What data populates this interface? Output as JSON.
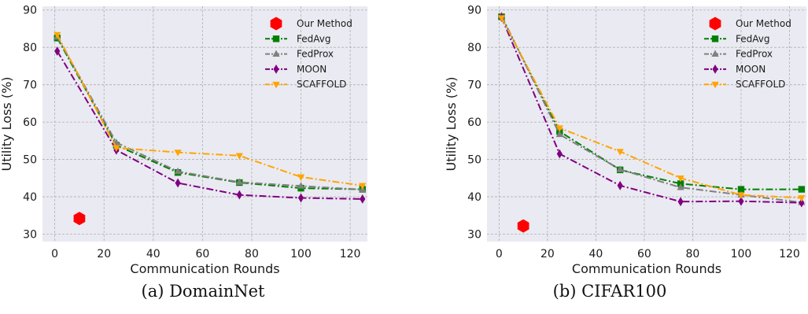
{
  "captions": [
    "(a) DomainNet",
    "(b) CIFAR100"
  ],
  "chart_data": [
    {
      "type": "line",
      "title": "",
      "xlabel": "Communication Rounds",
      "ylabel": "Utility Loss (%)",
      "xlim": [
        -5,
        127
      ],
      "ylim": [
        28,
        91
      ],
      "xticks": [
        0,
        20,
        40,
        60,
        80,
        100,
        120
      ],
      "yticks": [
        30,
        40,
        50,
        60,
        70,
        80,
        90
      ],
      "grid": true,
      "legend_position": "top-right",
      "series": [
        {
          "name": "Our Method",
          "color": "#ff0000",
          "marker": "hexagon",
          "line": "none",
          "x": [
            10
          ],
          "y": [
            34.2
          ]
        },
        {
          "name": "FedAvg",
          "color": "#008000",
          "marker": "square",
          "line": "dashdot",
          "x": [
            1,
            25,
            50,
            75,
            100,
            125
          ],
          "y": [
            82.5,
            53.8,
            46.5,
            43.8,
            42.3,
            42.0
          ]
        },
        {
          "name": "FedProx",
          "color": "#808080",
          "marker": "triangle-up",
          "line": "dashdot",
          "x": [
            1,
            25,
            50,
            75,
            100,
            125
          ],
          "y": [
            82.8,
            54.5,
            46.8,
            43.9,
            42.9,
            41.9
          ]
        },
        {
          "name": "MOON",
          "color": "#800080",
          "marker": "diamond",
          "line": "dashdot",
          "x": [
            1,
            25,
            50,
            75,
            100,
            125
          ],
          "y": [
            79.0,
            52.5,
            43.7,
            40.5,
            39.7,
            39.4
          ]
        },
        {
          "name": "SCAFFOLD",
          "color": "#ffa500",
          "marker": "triangle-down",
          "line": "dashdot",
          "x": [
            1,
            25,
            50,
            75,
            100,
            125
          ],
          "y": [
            83.4,
            53.1,
            51.9,
            51.0,
            45.3,
            43.0
          ]
        }
      ]
    },
    {
      "type": "line",
      "title": "",
      "xlabel": "Communication Rounds",
      "ylabel": "Utility Loss (%)",
      "xlim": [
        -5,
        127
      ],
      "ylim": [
        28,
        91
      ],
      "xticks": [
        0,
        20,
        40,
        60,
        80,
        100,
        120
      ],
      "yticks": [
        30,
        40,
        50,
        60,
        70,
        80,
        90
      ],
      "grid": true,
      "legend_position": "top-right",
      "series": [
        {
          "name": "Our Method",
          "color": "#ff0000",
          "marker": "hexagon",
          "line": "none",
          "x": [
            10
          ],
          "y": [
            32.2
          ]
        },
        {
          "name": "FedAvg",
          "color": "#008000",
          "marker": "square",
          "line": "dashdot",
          "x": [
            1,
            25,
            50,
            75,
            100,
            125
          ],
          "y": [
            88.2,
            57.5,
            47.2,
            43.5,
            42.0,
            42.0
          ]
        },
        {
          "name": "FedProx",
          "color": "#808080",
          "marker": "triangle-up",
          "line": "dashdot",
          "x": [
            1,
            25,
            50,
            75,
            100,
            125
          ],
          "y": [
            88.5,
            56.7,
            47.3,
            42.5,
            40.5,
            38.5
          ]
        },
        {
          "name": "MOON",
          "color": "#800080",
          "marker": "diamond",
          "line": "dashdot",
          "x": [
            1,
            25,
            50,
            75,
            100,
            125
          ],
          "y": [
            88.0,
            51.5,
            43.0,
            38.7,
            38.8,
            38.4
          ]
        },
        {
          "name": "SCAFFOLD",
          "color": "#ffa500",
          "marker": "triangle-down",
          "line": "dashdot",
          "x": [
            1,
            25,
            50,
            75,
            100,
            125
          ],
          "y": [
            87.9,
            58.4,
            52.1,
            45.0,
            40.5,
            39.7
          ]
        }
      ]
    }
  ]
}
